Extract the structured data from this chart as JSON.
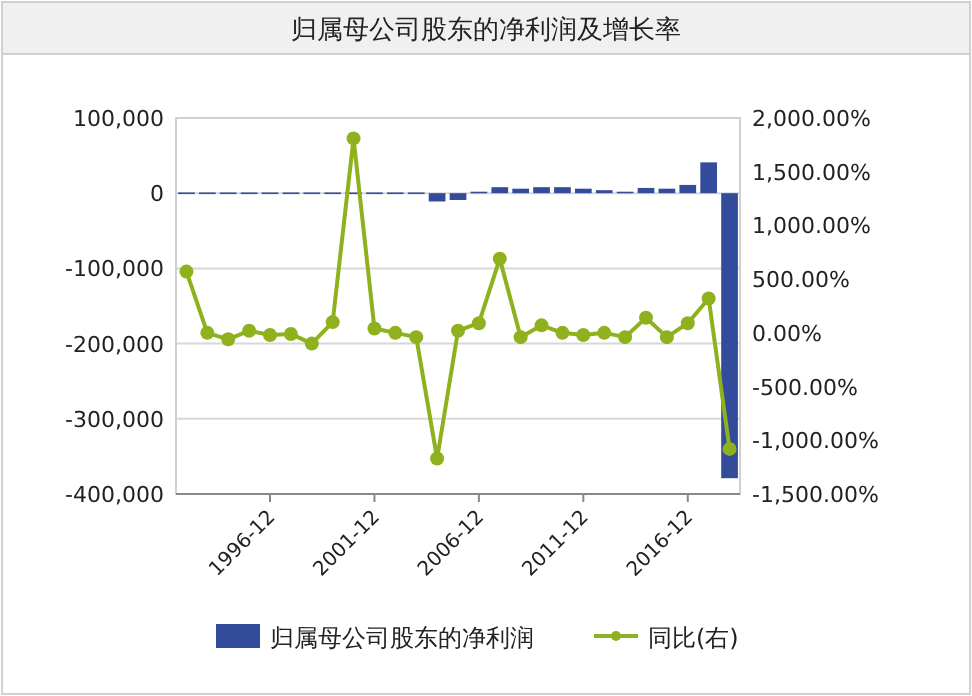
{
  "chart_data": {
    "type": "bar",
    "title": "归属母公司股东的净利润及增长率",
    "categories": [
      null,
      null,
      null,
      null,
      "1996-12",
      null,
      null,
      null,
      null,
      "2001-12",
      null,
      null,
      null,
      null,
      "2006-12",
      null,
      null,
      null,
      null,
      "2011-12",
      null,
      null,
      null,
      null,
      "2016-12",
      null,
      null
    ],
    "series": [
      {
        "name": "归属母公司股东的净利润",
        "color": "#334b9b",
        "values": [
          1000,
          1000,
          1000,
          1000,
          1000,
          1000,
          1000,
          1000,
          1000,
          1000,
          1000,
          1000,
          -11000,
          -9000,
          2000,
          8000,
          6000,
          8000,
          8000,
          6000,
          4000,
          2000,
          7000,
          6000,
          11000,
          41000,
          -379000
        ]
      },
      {
        "name": "同比(右)",
        "type": "line",
        "axis": "y2",
        "color": "#8fb11e",
        "marker": "circle",
        "values": [
          570,
          0,
          -60,
          20,
          -20,
          -10,
          -100,
          100,
          1810,
          40,
          0,
          -40,
          -1170,
          20,
          90,
          690,
          -40,
          70,
          0,
          -20,
          0,
          -40,
          140,
          -40,
          90,
          320,
          -1080
        ]
      }
    ],
    "ylim": [
      -400000,
      100000
    ],
    "yticks": [
      {
        "value": 100000,
        "label": "100,000"
      },
      0,
      {
        "value": -100000,
        "label": "-100,000"
      },
      {
        "value": -200000,
        "label": "-200,000"
      },
      {
        "value": -300000,
        "label": "-300,000"
      },
      {
        "value": -400000,
        "label": "-400,000"
      }
    ],
    "y2lim": [
      -1500,
      2000
    ],
    "y2ticks": [
      {
        "value": 2000,
        "label": "2,000.00%"
      },
      {
        "value": 1500,
        "label": "1,500.00%"
      },
      {
        "value": 1000,
        "label": "1,000.00%"
      },
      {
        "value": 500,
        "label": "500.00%"
      },
      {
        "value": 0,
        "label": "0.00%"
      },
      {
        "value": -500,
        "label": "-500.00%"
      },
      {
        "value": -1000,
        "label": "-1,000.00%"
      },
      {
        "value": -1500,
        "label": "-1,500.00%"
      }
    ],
    "grid": "y",
    "legend": "bottom"
  }
}
